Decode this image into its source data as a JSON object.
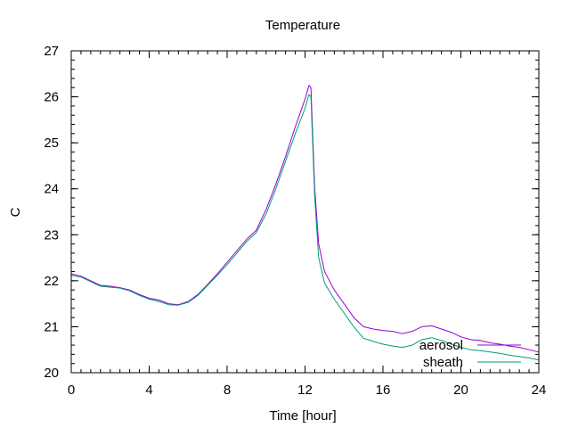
{
  "chart_data": {
    "type": "line",
    "title": "Temperature",
    "xlabel": "Time [hour]",
    "ylabel": "C",
    "xlim": [
      0,
      24
    ],
    "ylim": [
      20,
      27
    ],
    "xticks": [
      0,
      4,
      8,
      12,
      16,
      20,
      24
    ],
    "yticks": [
      20,
      21,
      22,
      23,
      24,
      25,
      26,
      27
    ],
    "grid": false,
    "legend_position": "bottom-right",
    "series": [
      {
        "name": "aerosol",
        "color": "#9400d3",
        "x": [
          0,
          0.5,
          1,
          1.5,
          2,
          2.5,
          3,
          3.5,
          4,
          4.5,
          5,
          5.5,
          6,
          6.5,
          7,
          7.5,
          8,
          8.5,
          9,
          9.5,
          10,
          10.5,
          11,
          11.5,
          12,
          12.2,
          12.3,
          12.5,
          12.7,
          13,
          13.5,
          14,
          14.5,
          15,
          15.5,
          16,
          16.5,
          17,
          17.5,
          18,
          18.5,
          19,
          19.5,
          20,
          20.5,
          21,
          21.5,
          22,
          22.5,
          23,
          23.5,
          24
        ],
        "values": [
          22.15,
          22.1,
          22.0,
          21.9,
          21.88,
          21.85,
          21.8,
          21.7,
          21.62,
          21.58,
          21.5,
          21.48,
          21.55,
          21.7,
          21.92,
          22.15,
          22.4,
          22.65,
          22.9,
          23.1,
          23.55,
          24.1,
          24.7,
          25.35,
          25.95,
          26.25,
          26.2,
          24.0,
          22.8,
          22.2,
          21.8,
          21.5,
          21.2,
          21.0,
          20.95,
          20.92,
          20.9,
          20.85,
          20.9,
          21.0,
          21.02,
          20.95,
          20.88,
          20.78,
          20.72,
          20.7,
          20.65,
          20.62,
          20.58,
          20.55,
          20.5,
          20.45
        ]
      },
      {
        "name": "sheath",
        "color": "#009e73",
        "x": [
          0,
          0.5,
          1,
          1.5,
          2,
          2.5,
          3,
          3.5,
          4,
          4.5,
          5,
          5.5,
          6,
          6.5,
          7,
          7.5,
          8,
          8.5,
          9,
          9.5,
          10,
          10.5,
          11,
          11.5,
          12,
          12.2,
          12.3,
          12.5,
          12.7,
          13,
          13.5,
          14,
          14.5,
          15,
          15.5,
          16,
          16.5,
          17,
          17.5,
          18,
          18.5,
          19,
          19.5,
          20,
          20.5,
          21,
          21.5,
          22,
          22.5,
          23,
          23.5,
          24
        ],
        "values": [
          22.12,
          22.08,
          21.98,
          21.88,
          21.86,
          21.84,
          21.78,
          21.68,
          21.6,
          21.55,
          21.48,
          21.47,
          21.53,
          21.68,
          21.9,
          22.12,
          22.35,
          22.6,
          22.85,
          23.05,
          23.45,
          24.0,
          24.6,
          25.2,
          25.75,
          26.05,
          26.0,
          23.8,
          22.5,
          21.95,
          21.6,
          21.3,
          21.0,
          20.75,
          20.68,
          20.62,
          20.58,
          20.55,
          20.6,
          20.72,
          20.76,
          20.7,
          20.62,
          20.55,
          20.5,
          20.48,
          20.45,
          20.42,
          20.38,
          20.35,
          20.32,
          20.28
        ]
      }
    ]
  }
}
